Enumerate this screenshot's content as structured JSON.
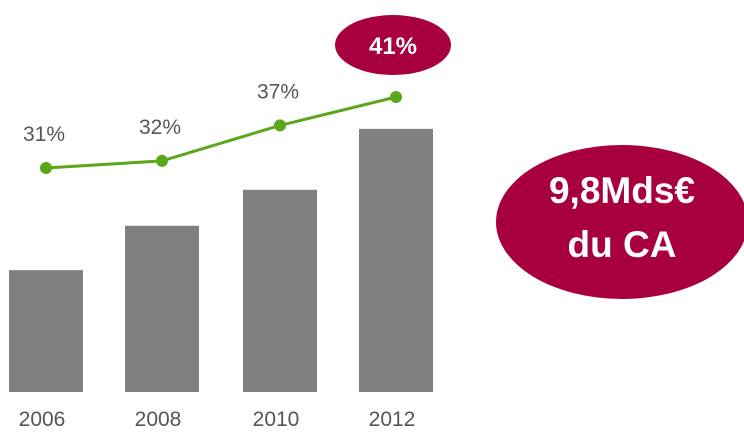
{
  "colors": {
    "bar": "#808080",
    "line": "#5aa71a",
    "highlight": "#a8003f",
    "label_text": "#555555",
    "highlight_text": "#ffffff"
  },
  "chart_data": {
    "type": "bar",
    "categories": [
      "2006",
      "2008",
      "2010",
      "2012"
    ],
    "series": [
      {
        "type": "bar",
        "values": [
          44,
          60,
          73,
          95
        ]
      },
      {
        "type": "line",
        "values": [
          31,
          32,
          37,
          41
        ],
        "labels": [
          "31%",
          "32%",
          "37%",
          "41%"
        ],
        "highlight_index": 3
      }
    ],
    "title": "",
    "xlabel": "",
    "ylabel": "",
    "ylim": [
      0,
      100
    ],
    "grid": false,
    "legend": "none"
  },
  "callout": {
    "line1": "9,8Mds€",
    "line2": "du CA"
  }
}
